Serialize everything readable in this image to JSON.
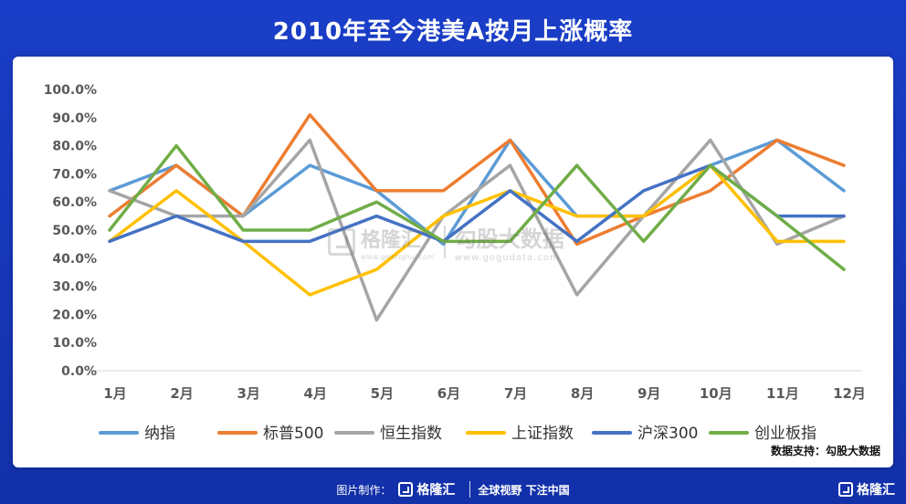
{
  "header": {
    "title": "2010年至今港美A按月上涨概率"
  },
  "watermark": {
    "brand": "格隆汇",
    "brand_url": "www.gelonghui.com",
    "source_brand": "勾股大数据",
    "source_url": "www.gogudata.com"
  },
  "source_note": "数据支持：勾股大数据",
  "footer": {
    "made_by": "图片制作：",
    "logo_text": "格隆汇",
    "slogan": "全球视野 下注中国",
    "corner_logo": "格隆汇"
  },
  "colors": {
    "纳指": "#5b9bd5",
    "标普500": "#ed7d31",
    "恒生指数": "#a5a5a5",
    "上证指数": "#ffc000",
    "沪深300": "#4472c4",
    "创业板指": "#70ad47"
  },
  "chart_data": {
    "type": "line",
    "title": "2010年至今港美A按月上涨概率",
    "xlabel": "",
    "ylabel": "",
    "categories": [
      "1月",
      "2月",
      "3月",
      "4月",
      "5月",
      "6月",
      "7月",
      "8月",
      "9月",
      "10月",
      "11月",
      "12月"
    ],
    "ylim": [
      0,
      100
    ],
    "yticks": [
      "0.0%",
      "10.0%",
      "20.0%",
      "30.0%",
      "40.0%",
      "50.0%",
      "60.0%",
      "70.0%",
      "80.0%",
      "90.0%",
      "100.0%"
    ],
    "grid": false,
    "legend": "bottom",
    "series": [
      {
        "name": "纳指",
        "color": "#5b9bd5",
        "values": [
          64,
          73,
          55,
          73,
          64,
          45,
          82,
          55,
          55,
          73,
          82,
          64
        ]
      },
      {
        "name": "标普500",
        "color": "#ed7d31",
        "values": [
          55,
          73,
          55,
          91,
          64,
          64,
          82,
          45,
          55,
          64,
          82,
          73
        ]
      },
      {
        "name": "恒生指数",
        "color": "#a5a5a5",
        "values": [
          64,
          55,
          55,
          82,
          18,
          55,
          73,
          27,
          55,
          82,
          45,
          55
        ]
      },
      {
        "name": "上证指数",
        "color": "#ffc000",
        "values": [
          46,
          64,
          46,
          27,
          36,
          55,
          64,
          55,
          55,
          73,
          46,
          46
        ]
      },
      {
        "name": "沪深300",
        "color": "#4472c4",
        "values": [
          46,
          55,
          46,
          46,
          55,
          46,
          64,
          46,
          64,
          73,
          55,
          55
        ]
      },
      {
        "name": "创业板指",
        "color": "#70ad47",
        "values": [
          50,
          80,
          50,
          50,
          60,
          46,
          46,
          73,
          46,
          73,
          55,
          36
        ]
      }
    ]
  }
}
